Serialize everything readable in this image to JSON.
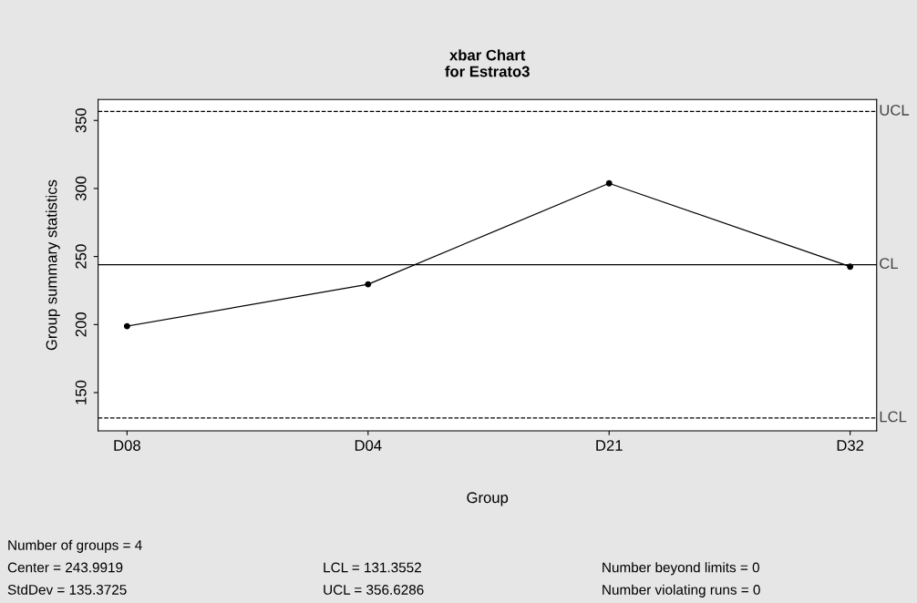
{
  "chart_data": {
    "type": "line",
    "title": "xbar Chart\nfor Estrato3",
    "xlabel": "Group",
    "ylabel": "Group summary statistics",
    "categories": [
      "D08",
      "D04",
      "D21",
      "D32"
    ],
    "series": [
      {
        "color": "#000000",
        "values": [
          198.8,
          229.6,
          303.8,
          242.6
        ]
      }
    ],
    "marker": "circle",
    "line_style": "solid",
    "ylim": [
      121.9,
      365.4
    ],
    "yticks": [
      150,
      200,
      250,
      300,
      350
    ],
    "grid": false,
    "legend": false,
    "ref_lines": [
      {
        "axis": "y",
        "value": 356.6286,
        "label": "UCL",
        "line_style": "dashed",
        "color": "#000000"
      },
      {
        "axis": "y",
        "value": 243.9919,
        "label": "CL",
        "line_style": "solid",
        "color": "#000000"
      },
      {
        "axis": "y",
        "value": 131.3552,
        "label": "LCL",
        "line_style": "dashed",
        "color": "#000000"
      }
    ],
    "annotations": [
      "Number of groups = 4",
      "Center = 243.9919",
      "StdDev = 135.3725",
      "LCL = 131.3552",
      "UCL = 356.6286",
      "Number beyond limits = 0",
      "Number violating runs = 0"
    ]
  }
}
